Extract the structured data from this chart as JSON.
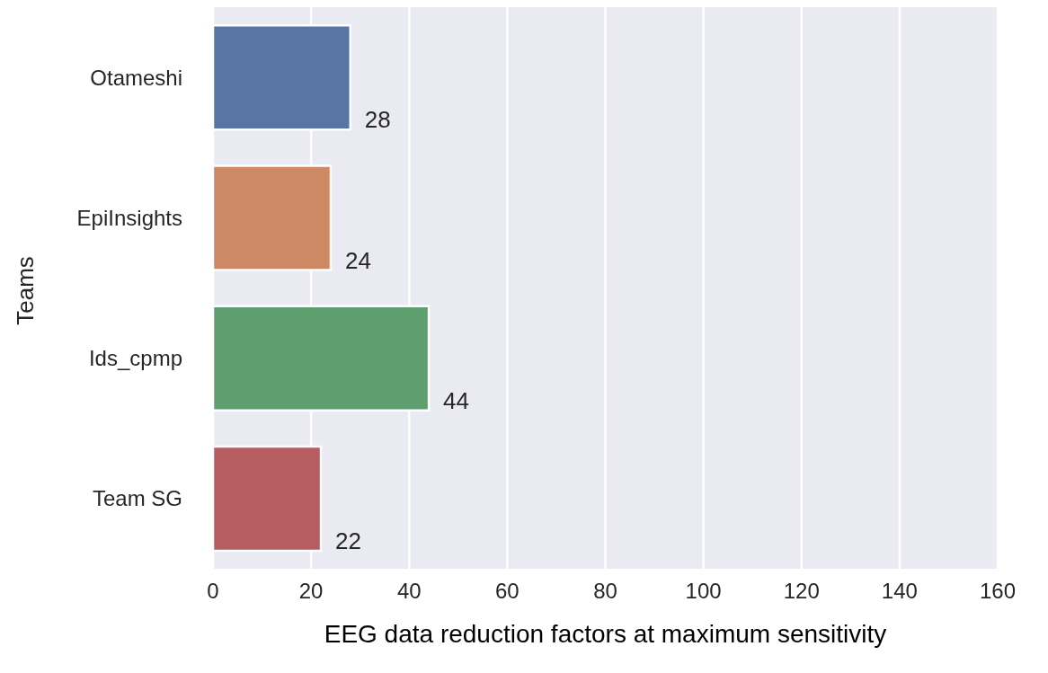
{
  "chart_data": {
    "type": "bar",
    "orientation": "horizontal",
    "categories": [
      "Otameshi",
      "EpiInsights",
      "Ids_cpmp",
      "Team SG"
    ],
    "values": [
      28,
      24,
      44,
      22
    ],
    "colors": [
      "#5975a4",
      "#cc8963",
      "#5f9e6e",
      "#b55d60"
    ],
    "xlabel": "EEG data reduction factors at maximum sensitivity",
    "ylabel": "Teams",
    "xlim": [
      0,
      160
    ],
    "xticks": [
      0,
      20,
      40,
      60,
      80,
      100,
      120,
      140,
      160
    ],
    "grid": "x",
    "data_labels": true
  }
}
